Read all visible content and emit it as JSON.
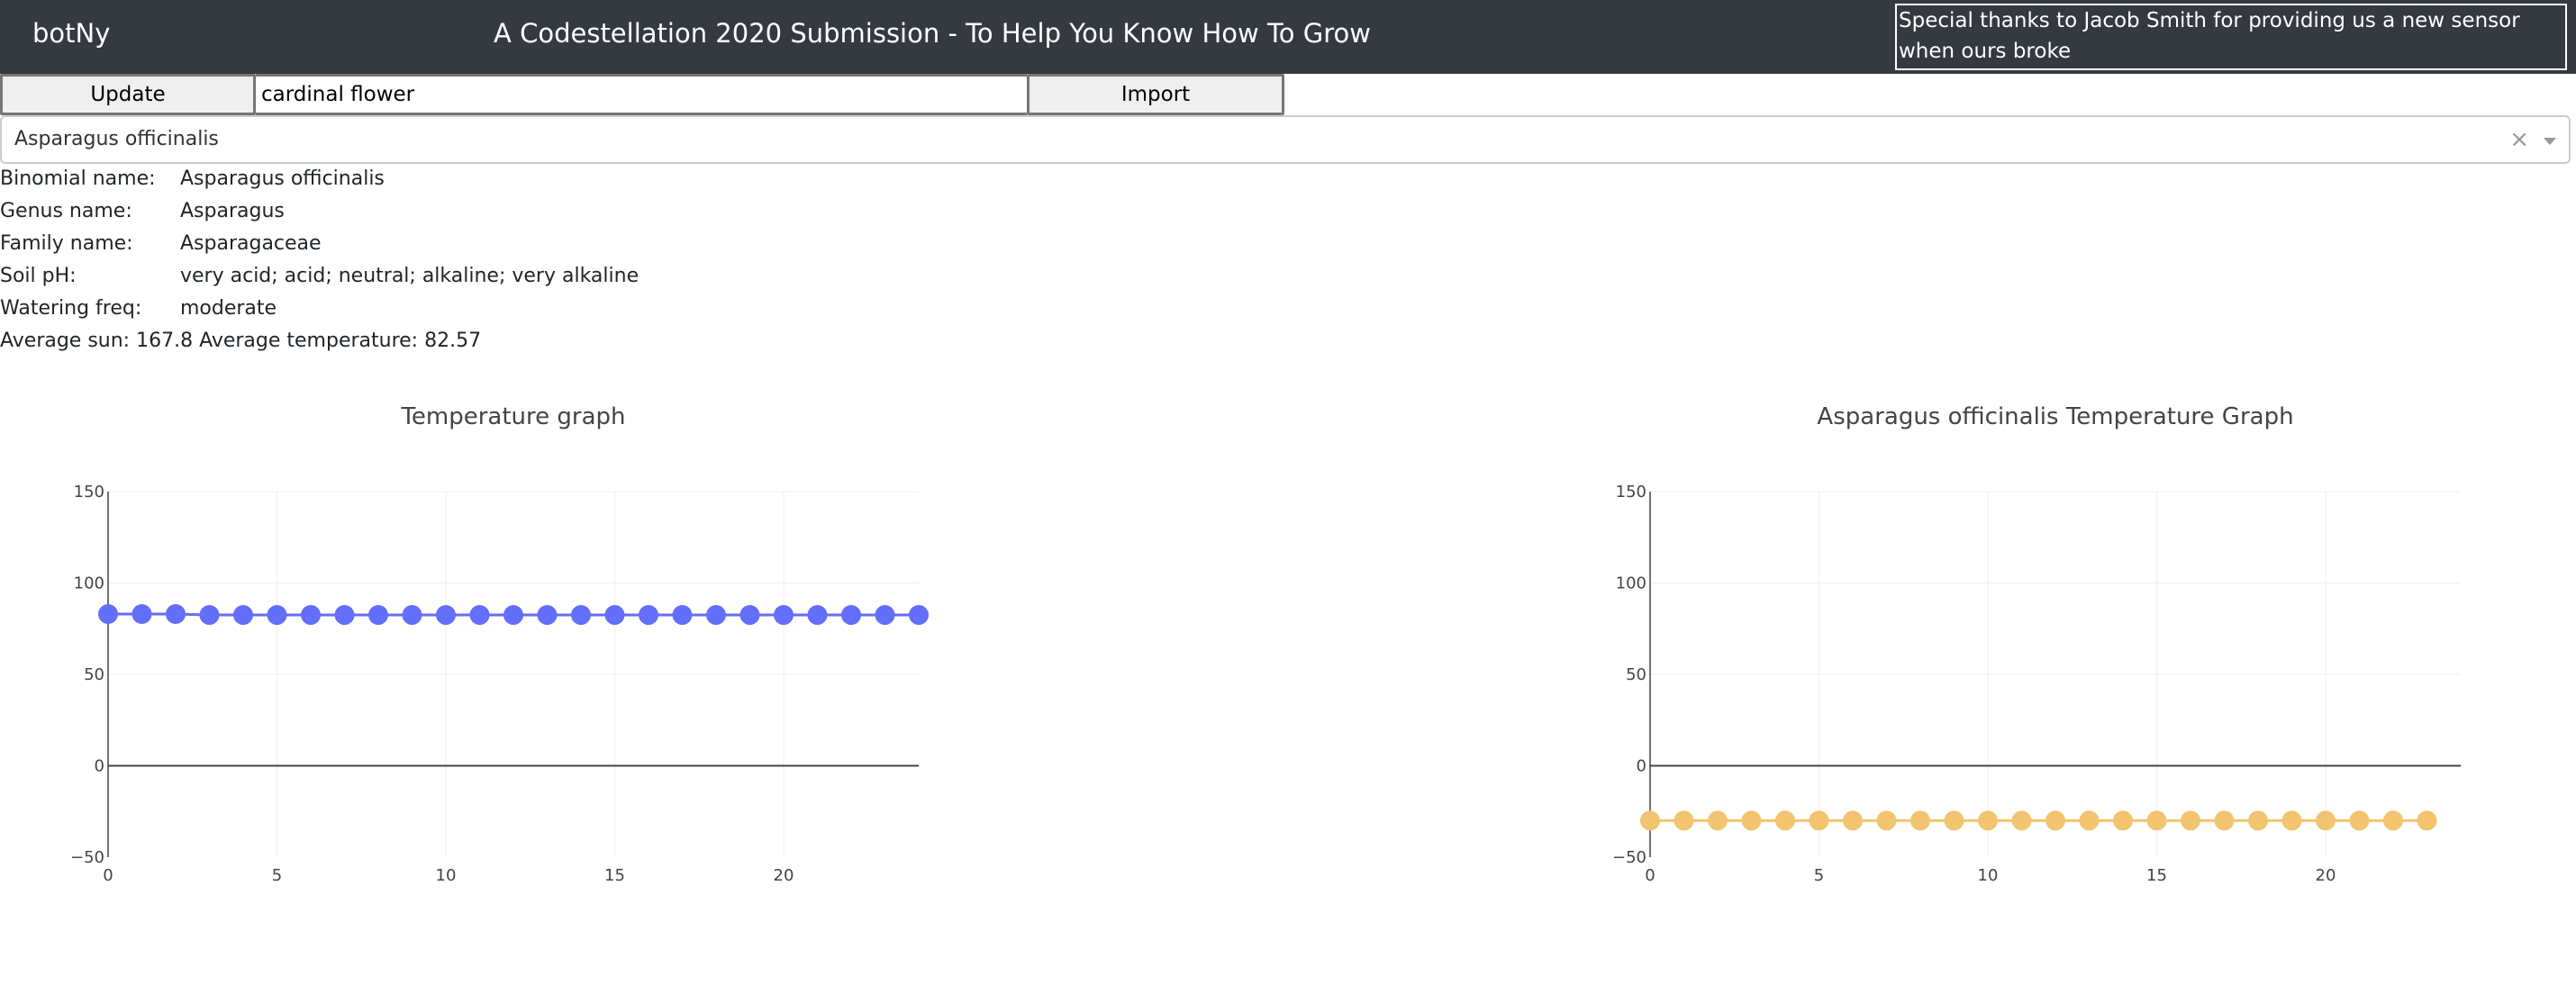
{
  "header": {
    "brand": "botNy",
    "title": "A Codestellation 2020 Submission - To Help You Know How To Grow",
    "thanks": "Special thanks to Jacob Smith for providing us a new sensor when ours broke"
  },
  "controls": {
    "update_label": "Update",
    "search_value": "cardinal flower",
    "import_label": "Import"
  },
  "dropdown": {
    "selected": "Asparagus officinalis",
    "clear_symbol": "×"
  },
  "info": [
    {
      "label": "Binomial name:",
      "value": "Asparagus officinalis"
    },
    {
      "label": "Genus name:",
      "value": "Asparagus"
    },
    {
      "label": "Family name:",
      "value": "Asparagaceae"
    },
    {
      "label": "Soil pH:",
      "value": "very acid; acid; neutral; alkaline; very alkaline"
    },
    {
      "label": "Watering freq:",
      "value": "moderate"
    }
  ],
  "averages": "Average sun: 167.8 Average temperature: 82.57",
  "chart_data": [
    {
      "type": "line",
      "title": "Temperature graph",
      "xlabel": "",
      "ylabel": "",
      "x": [
        0,
        1,
        2,
        3,
        4,
        5,
        6,
        7,
        8,
        9,
        10,
        11,
        12,
        13,
        14,
        15,
        16,
        17,
        18,
        19,
        20,
        21,
        22,
        23,
        24
      ],
      "series": [
        {
          "values": [
            83,
            83,
            83,
            82.5,
            82.5,
            82.5,
            82.5,
            82.5,
            82.5,
            82.5,
            82.5,
            82.5,
            82.5,
            82.5,
            82.5,
            82.5,
            82.5,
            82.5,
            82.5,
            82.5,
            82.5,
            82.5,
            82.5,
            82.5,
            82.5
          ],
          "color": "#636efa"
        }
      ],
      "xlim": [
        0,
        24
      ],
      "ylim": [
        -50,
        150
      ],
      "xticks": [
        0,
        5,
        10,
        15,
        20
      ],
      "yticks": [
        -50,
        0,
        50,
        100,
        150
      ],
      "ytick_labels": [
        "−50",
        "0",
        "50",
        "100",
        "150"
      ],
      "grid": true
    },
    {
      "type": "line",
      "title": "Asparagus officinalis Temperature Graph",
      "xlabel": "",
      "ylabel": "",
      "x": [
        0,
        1,
        2,
        3,
        4,
        5,
        6,
        7,
        8,
        9,
        10,
        11,
        12,
        13,
        14,
        15,
        16,
        17,
        18,
        19,
        20,
        21,
        22,
        23
      ],
      "series": [
        {
          "values": [
            -30,
            -30,
            -30,
            -30,
            -30,
            -30,
            -30,
            -30,
            -30,
            -30,
            -30,
            -30,
            -30,
            -30,
            -30,
            -30,
            -30,
            -30,
            -30,
            -30,
            -30,
            -30,
            -30,
            -30
          ],
          "color": "#f2c46f"
        }
      ],
      "xlim": [
        0,
        24
      ],
      "ylim": [
        -50,
        150
      ],
      "xticks": [
        0,
        5,
        10,
        15,
        20
      ],
      "yticks": [
        -50,
        0,
        50,
        100,
        150
      ],
      "ytick_labels": [
        "−50",
        "0",
        "50",
        "100",
        "150"
      ],
      "grid": true
    }
  ]
}
